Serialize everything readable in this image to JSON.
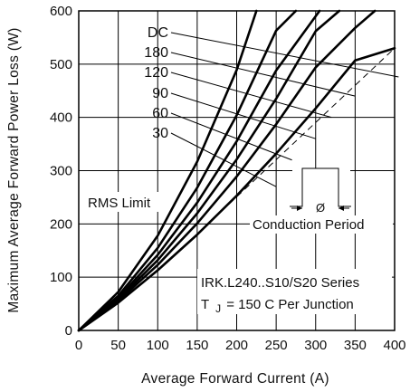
{
  "chart_data": {
    "type": "line",
    "xlabel": "Average Forward Current (A)",
    "ylabel": "Maximum Average Forward Power Loss (W)",
    "xlim": [
      0,
      400
    ],
    "ylim": [
      0,
      600
    ],
    "xticks": [
      0,
      50,
      100,
      150,
      200,
      250,
      300,
      350,
      400
    ],
    "yticks": [
      0,
      100,
      200,
      300,
      400,
      500,
      600
    ],
    "grid": true,
    "series": [
      {
        "name": "DC",
        "x": [
          0,
          50,
          100,
          150,
          200,
          250,
          300,
          350,
          400
        ],
        "y": [
          0,
          52,
          113,
          180,
          253,
          332,
          417,
          507,
          530
        ]
      },
      {
        "name": "180",
        "x": [
          0,
          50,
          100,
          150,
          200,
          250,
          300,
          350,
          375
        ],
        "y": [
          0,
          55,
          123,
          201,
          289,
          387,
          494,
          568,
          600
        ]
      },
      {
        "name": "120",
        "x": [
          0,
          50,
          100,
          150,
          200,
          250,
          300,
          330
        ],
        "y": [
          0,
          58,
          132,
          220,
          321,
          435,
          562,
          600
        ]
      },
      {
        "name": "90",
        "x": [
          0,
          50,
          100,
          150,
          200,
          250,
          300,
          305
        ],
        "y": [
          0,
          61,
          142,
          240,
          355,
          488,
          590,
          600
        ]
      },
      {
        "name": "60",
        "x": [
          0,
          50,
          100,
          150,
          200,
          250,
          275
        ],
        "y": [
          0,
          65,
          155,
          268,
          404,
          563,
          600
        ]
      },
      {
        "name": "30",
        "x": [
          0,
          50,
          100,
          150,
          200,
          225
        ],
        "y": [
          0,
          72,
          178,
          317,
          489,
          600
        ]
      }
    ],
    "rms_limit": {
      "x": [
        130,
        400
      ],
      "y": [
        153,
        530
      ]
    },
    "annotations": {
      "rms_limit": "RMS Limit",
      "conduction_period": "Conduction Period",
      "phi": "Ø",
      "series_name": "IRK.L240..S10/S20  Series",
      "tj_prefix": "T",
      "tj_sub": "J",
      "tj_rest": "= 150 C  Per Junction"
    }
  }
}
